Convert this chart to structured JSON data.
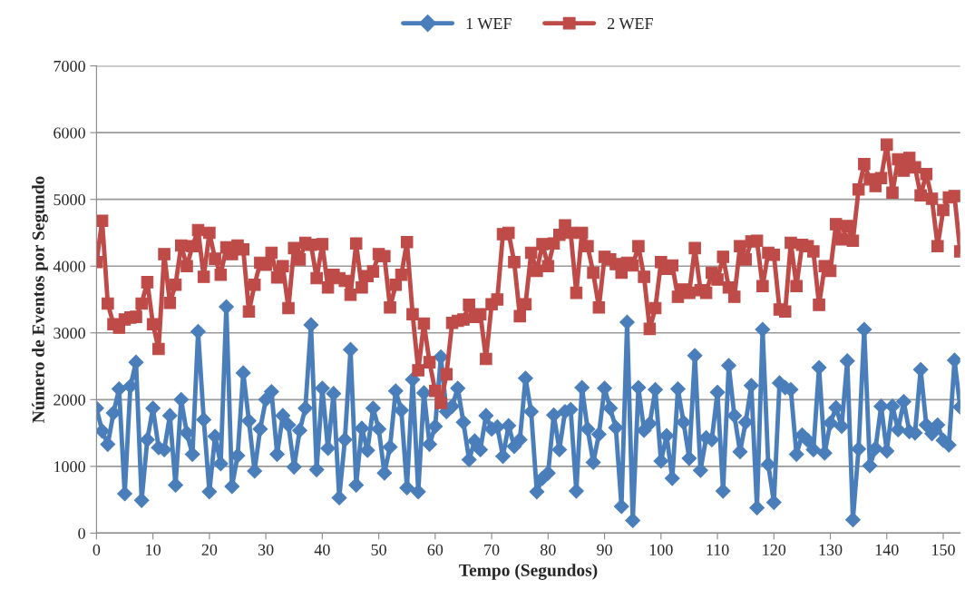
{
  "chart_data": {
    "type": "line",
    "xlabel": "Tempo (Segundos)",
    "ylabel": "Número de Eventos por Segundo",
    "x": [
      0,
      1,
      2,
      3,
      4,
      5,
      6,
      7,
      8,
      9,
      10,
      11,
      12,
      13,
      14,
      15,
      16,
      17,
      18,
      19,
      20,
      21,
      22,
      23,
      24,
      25,
      26,
      27,
      28,
      29,
      30,
      31,
      32,
      33,
      34,
      35,
      36,
      37,
      38,
      39,
      40,
      41,
      42,
      43,
      44,
      45,
      46,
      47,
      48,
      49,
      50,
      51,
      52,
      53,
      54,
      55,
      56,
      57,
      58,
      59,
      60,
      61,
      62,
      63,
      64,
      65,
      66,
      67,
      68,
      69,
      70,
      71,
      72,
      73,
      74,
      75,
      76,
      77,
      78,
      79,
      80,
      81,
      82,
      83,
      84,
      85,
      86,
      87,
      88,
      89,
      90,
      91,
      92,
      93,
      94,
      95,
      96,
      97,
      98,
      99,
      100,
      101,
      102,
      103,
      104,
      105,
      106,
      107,
      108,
      109,
      110,
      111,
      112,
      113,
      114,
      115,
      116,
      117,
      118,
      119,
      120,
      121,
      122,
      123,
      124,
      125,
      126,
      127,
      128,
      129,
      130,
      131,
      132,
      133,
      134,
      135,
      136,
      137,
      138,
      139,
      140,
      141,
      142,
      143,
      144,
      145,
      146,
      147,
      148,
      149,
      150,
      151,
      152,
      153
    ],
    "series": [
      {
        "name": "1 WEF",
        "color": "#4a7ebb",
        "marker": "diamond",
        "values": [
          1870,
          1530,
          1330,
          1800,
          2160,
          590,
          2200,
          2560,
          490,
          1400,
          1870,
          1280,
          1250,
          1760,
          720,
          2000,
          1500,
          1180,
          3020,
          1700,
          620,
          1450,
          1040,
          3390,
          700,
          1160,
          2400,
          1680,
          930,
          1560,
          2000,
          2120,
          1180,
          1760,
          1620,
          990,
          1540,
          1870,
          3120,
          950,
          2170,
          1270,
          2090,
          530,
          1400,
          2750,
          720,
          1570,
          1240,
          1870,
          1560,
          900,
          1290,
          2130,
          1840,
          680,
          2300,
          620,
          2100,
          1330,
          1600,
          2640,
          1820,
          1900,
          2170,
          1660,
          1100,
          1380,
          1250,
          1760,
          1560,
          1590,
          1150,
          1610,
          1300,
          1400,
          2320,
          1820,
          620,
          820,
          900,
          1770,
          1250,
          1820,
          1850,
          630,
          2180,
          1560,
          1060,
          1480,
          2170,
          1870,
          1580,
          400,
          3160,
          190,
          2180,
          1540,
          1640,
          2150,
          1080,
          1460,
          820,
          2160,
          1660,
          1120,
          2660,
          940,
          1430,
          1400,
          2110,
          630,
          2510,
          1760,
          1220,
          1660,
          2210,
          380,
          3050,
          1030,
          460,
          2250,
          2180,
          2150,
          1180,
          1470,
          1390,
          1250,
          2480,
          1200,
          1650,
          1880,
          1600,
          2580,
          200,
          1260,
          3050,
          1010,
          1270,
          1900,
          1230,
          1900,
          1550,
          1970,
          1520,
          1500,
          2450,
          1620,
          1490,
          1620,
          1390,
          1320,
          2590,
          1890
        ]
      },
      {
        "name": "2 WEF",
        "color": "#be4b48",
        "marker": "square",
        "values": [
          4060,
          4680,
          3440,
          3130,
          3080,
          3200,
          3230,
          3240,
          3440,
          3760,
          3130,
          2760,
          4180,
          3450,
          3720,
          4310,
          4000,
          4300,
          4540,
          3840,
          4500,
          4110,
          3870,
          4280,
          4180,
          4310,
          4250,
          3320,
          3720,
          4050,
          4020,
          4200,
          3830,
          4000,
          3370,
          4270,
          4100,
          4350,
          4320,
          3820,
          4330,
          3680,
          3870,
          3820,
          3780,
          3570,
          4340,
          3680,
          3850,
          3920,
          4180,
          4150,
          3380,
          3720,
          3870,
          4360,
          3280,
          2440,
          3140,
          2560,
          2130,
          1950,
          2380,
          3150,
          3180,
          3200,
          3420,
          3240,
          3280,
          2610,
          3430,
          3500,
          4480,
          4500,
          4060,
          3250,
          3430,
          4200,
          3930,
          4330,
          4000,
          4340,
          4470,
          4610,
          4500,
          3600,
          4500,
          4300,
          3900,
          3380,
          4140,
          4100,
          4030,
          3900,
          4050,
          4010,
          4300,
          3840,
          3060,
          3370,
          4060,
          3960,
          4010,
          3540,
          3650,
          3600,
          4270,
          3640,
          3600,
          3900,
          3800,
          4140,
          3680,
          3540,
          4300,
          4100,
          4370,
          4380,
          3700,
          4200,
          4170,
          3350,
          3320,
          4350,
          3700,
          4320,
          4300,
          4220,
          3420,
          4000,
          3930,
          4630,
          4400,
          4600,
          4380,
          5150,
          5530,
          5300,
          5200,
          5320,
          5820,
          5100,
          5600,
          5430,
          5620,
          5480,
          5060,
          5380,
          5010,
          4300,
          4840,
          5030,
          5050,
          4220
        ]
      }
    ],
    "xlim": [
      0,
      153
    ],
    "xticks": [
      0,
      10,
      20,
      30,
      40,
      50,
      60,
      70,
      80,
      90,
      100,
      110,
      120,
      130,
      140,
      150
    ],
    "ylim": [
      0,
      7000
    ],
    "yticks": [
      0,
      1000,
      2000,
      3000,
      4000,
      5000,
      6000,
      7000
    ],
    "grid": "y",
    "legend": "top",
    "line_style": "solid"
  }
}
